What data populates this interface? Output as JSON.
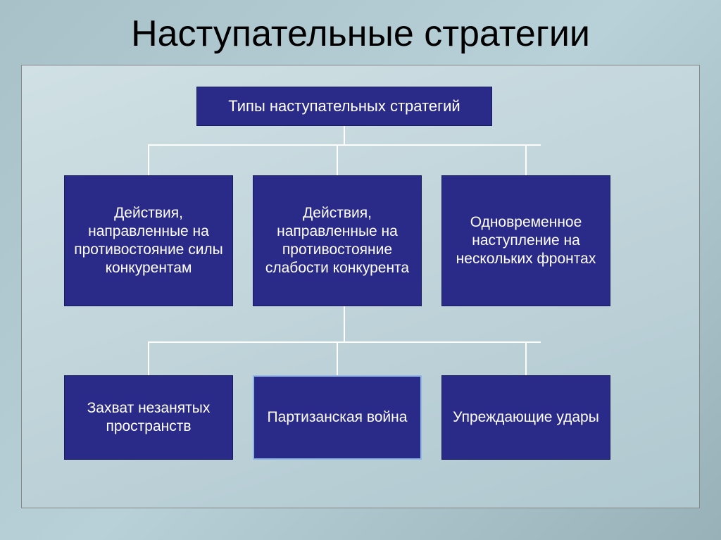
{
  "slide": {
    "title": "Наступательные стратегии"
  },
  "diagram": {
    "type": "tree",
    "root": {
      "label": "Типы наступательных стратегий"
    },
    "middle": [
      {
        "label": "Действия, направленные на противостояние силы конкурентам"
      },
      {
        "label": "Действия, направленные на противостояние слабости конкурента"
      },
      {
        "label": "Одновременное наступление на нескольких фронтах"
      }
    ],
    "bottom": [
      {
        "label": "Захват незанятых пространств"
      },
      {
        "label": "Партизанская война"
      },
      {
        "label": "Упреждающие удары"
      }
    ],
    "style": {
      "box_fill": "#2a2a88",
      "box_border": "#1a1a60",
      "box_text_color": "#ffffff",
      "highlight_border": "#8fb8e8",
      "connector_color": "#ffffff",
      "slide_bg_gradient": [
        "#a8c0c8",
        "#b8d0d8",
        "#98b0b8"
      ],
      "panel_bg_gradient": [
        "#d0e0e4",
        "#b0c8d0"
      ],
      "title_color": "#000000",
      "title_fontsize": 52,
      "box_fontsize": 21,
      "root_fontsize": 22
    }
  }
}
